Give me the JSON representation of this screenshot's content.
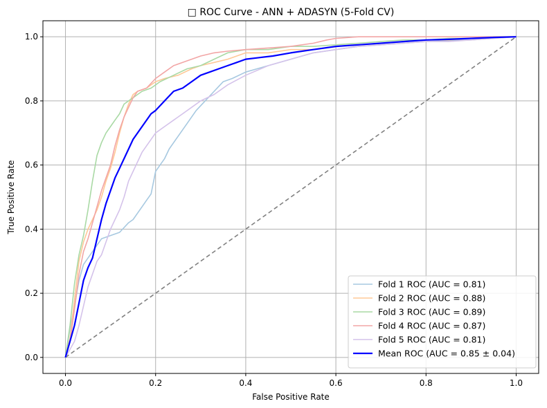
{
  "chart_data": {
    "type": "line",
    "title": "□ ROC Curve - ANN + ADASYN (5-Fold CV)",
    "xlabel": "False Positive Rate",
    "ylabel": "True Positive Rate",
    "xlim": [
      -0.05,
      1.05
    ],
    "ylim": [
      -0.05,
      1.05
    ],
    "xticks": [
      "0.0",
      "0.2",
      "0.4",
      "0.6",
      "0.8",
      "1.0"
    ],
    "yticks": [
      "0.0",
      "0.2",
      "0.4",
      "0.6",
      "0.8",
      "1.0"
    ],
    "grid": true,
    "legend_position": "lower right",
    "series": [
      {
        "name": "Fold 1 ROC (AUC = 0.81)",
        "color": "#a6c8e0",
        "x": [
          0,
          0.01,
          0.02,
          0.03,
          0.04,
          0.05,
          0.06,
          0.07,
          0.08,
          0.1,
          0.12,
          0.14,
          0.15,
          0.16,
          0.17,
          0.18,
          0.19,
          0.2,
          0.21,
          0.22,
          0.23,
          0.24,
          0.25,
          0.27,
          0.29,
          0.31,
          0.33,
          0.35,
          0.37,
          0.4,
          0.45,
          0.5,
          0.55,
          0.6,
          0.65,
          0.7,
          0.75,
          0.8,
          0.85,
          0.9,
          0.95,
          1.0
        ],
        "y": [
          0,
          0.09,
          0.16,
          0.24,
          0.29,
          0.31,
          0.33,
          0.35,
          0.37,
          0.38,
          0.39,
          0.42,
          0.43,
          0.45,
          0.47,
          0.49,
          0.51,
          0.58,
          0.6,
          0.62,
          0.65,
          0.67,
          0.69,
          0.73,
          0.77,
          0.8,
          0.83,
          0.86,
          0.87,
          0.89,
          0.91,
          0.93,
          0.95,
          0.96,
          0.97,
          0.975,
          0.98,
          0.985,
          0.988,
          0.99,
          0.995,
          1.0
        ]
      },
      {
        "name": "Fold 2 ROC (AUC = 0.88)",
        "color": "#ffc896",
        "x": [
          0,
          0.01,
          0.02,
          0.03,
          0.04,
          0.05,
          0.06,
          0.07,
          0.08,
          0.09,
          0.1,
          0.11,
          0.12,
          0.13,
          0.14,
          0.15,
          0.16,
          0.18,
          0.2,
          0.22,
          0.25,
          0.28,
          0.3,
          0.33,
          0.36,
          0.4,
          0.45,
          0.5,
          0.55,
          0.6,
          0.65,
          0.7,
          0.75,
          0.8,
          0.85,
          0.9,
          0.95,
          1.0
        ],
        "y": [
          0,
          0.06,
          0.18,
          0.3,
          0.36,
          0.4,
          0.43,
          0.46,
          0.5,
          0.55,
          0.59,
          0.64,
          0.7,
          0.75,
          0.79,
          0.82,
          0.83,
          0.84,
          0.86,
          0.87,
          0.88,
          0.9,
          0.91,
          0.92,
          0.93,
          0.95,
          0.95,
          0.96,
          0.96,
          0.97,
          0.975,
          0.98,
          0.985,
          0.99,
          0.99,
          0.995,
          1.0,
          1.0
        ]
      },
      {
        "name": "Fold 3 ROC (AUC = 0.89)",
        "color": "#a9d9a4",
        "x": [
          0,
          0.01,
          0.02,
          0.03,
          0.04,
          0.05,
          0.06,
          0.07,
          0.08,
          0.09,
          0.1,
          0.11,
          0.12,
          0.13,
          0.14,
          0.15,
          0.16,
          0.17,
          0.19,
          0.21,
          0.24,
          0.27,
          0.3,
          0.33,
          0.36,
          0.4,
          0.45,
          0.5,
          0.55,
          0.6,
          0.65,
          0.7,
          0.75,
          0.8,
          0.85,
          0.9,
          0.95,
          1.0
        ],
        "y": [
          0,
          0.1,
          0.23,
          0.32,
          0.38,
          0.46,
          0.55,
          0.63,
          0.67,
          0.7,
          0.72,
          0.74,
          0.76,
          0.79,
          0.8,
          0.81,
          0.82,
          0.83,
          0.84,
          0.86,
          0.88,
          0.9,
          0.91,
          0.93,
          0.95,
          0.96,
          0.96,
          0.97,
          0.97,
          0.975,
          0.98,
          0.985,
          0.99,
          0.99,
          0.995,
          0.995,
          1.0,
          1.0
        ]
      },
      {
        "name": "Fold 4 ROC (AUC = 0.87)",
        "color": "#f2a5a5",
        "x": [
          0,
          0.01,
          0.02,
          0.03,
          0.04,
          0.05,
          0.06,
          0.07,
          0.08,
          0.09,
          0.1,
          0.11,
          0.12,
          0.13,
          0.14,
          0.15,
          0.16,
          0.18,
          0.2,
          0.22,
          0.24,
          0.26,
          0.28,
          0.3,
          0.33,
          0.36,
          0.4,
          0.45,
          0.5,
          0.55,
          0.58,
          0.6,
          0.65,
          0.7,
          0.8,
          0.9,
          1.0
        ],
        "y": [
          0,
          0.05,
          0.15,
          0.26,
          0.33,
          0.37,
          0.42,
          0.47,
          0.52,
          0.56,
          0.6,
          0.66,
          0.71,
          0.75,
          0.78,
          0.81,
          0.83,
          0.84,
          0.87,
          0.89,
          0.91,
          0.92,
          0.93,
          0.94,
          0.95,
          0.955,
          0.96,
          0.965,
          0.97,
          0.98,
          0.99,
          0.995,
          1.0,
          1.0,
          1.0,
          1.0,
          1.0
        ]
      },
      {
        "name": "Fold 5 ROC (AUC = 0.81)",
        "color": "#d4c2ea",
        "x": [
          0,
          0.02,
          0.03,
          0.04,
          0.05,
          0.06,
          0.07,
          0.08,
          0.09,
          0.1,
          0.11,
          0.12,
          0.13,
          0.14,
          0.15,
          0.16,
          0.17,
          0.18,
          0.2,
          0.22,
          0.24,
          0.26,
          0.28,
          0.3,
          0.33,
          0.36,
          0.4,
          0.45,
          0.5,
          0.55,
          0.6,
          0.65,
          0.7,
          0.75,
          0.8,
          0.85,
          0.9,
          0.95,
          1.0
        ],
        "y": [
          0,
          0.05,
          0.1,
          0.16,
          0.22,
          0.26,
          0.3,
          0.32,
          0.36,
          0.4,
          0.43,
          0.46,
          0.5,
          0.55,
          0.58,
          0.61,
          0.64,
          0.66,
          0.7,
          0.72,
          0.74,
          0.76,
          0.78,
          0.8,
          0.82,
          0.85,
          0.88,
          0.91,
          0.93,
          0.95,
          0.96,
          0.97,
          0.975,
          0.98,
          0.985,
          0.985,
          0.99,
          0.995,
          1.0
        ]
      },
      {
        "name": "Mean ROC (AUC = 0.85 ± 0.04)",
        "color": "#0000ff",
        "x": [
          0,
          0.01,
          0.02,
          0.03,
          0.04,
          0.05,
          0.06,
          0.07,
          0.08,
          0.09,
          0.1,
          0.11,
          0.12,
          0.13,
          0.14,
          0.15,
          0.16,
          0.17,
          0.18,
          0.19,
          0.2,
          0.22,
          0.24,
          0.26,
          0.28,
          0.3,
          0.32,
          0.34,
          0.36,
          0.38,
          0.4,
          0.43,
          0.46,
          0.5,
          0.55,
          0.6,
          0.65,
          0.7,
          0.75,
          0.8,
          0.85,
          0.9,
          0.95,
          1.0
        ],
        "y": [
          0,
          0.05,
          0.1,
          0.17,
          0.24,
          0.28,
          0.31,
          0.37,
          0.43,
          0.48,
          0.52,
          0.56,
          0.59,
          0.62,
          0.65,
          0.68,
          0.7,
          0.72,
          0.74,
          0.76,
          0.77,
          0.8,
          0.83,
          0.84,
          0.86,
          0.88,
          0.89,
          0.9,
          0.91,
          0.92,
          0.93,
          0.935,
          0.94,
          0.95,
          0.96,
          0.97,
          0.975,
          0.98,
          0.985,
          0.99,
          0.992,
          0.995,
          0.998,
          1.0
        ]
      },
      {
        "name": "",
        "color": "#808080",
        "dashed": true,
        "x": [
          0,
          1
        ],
        "y": [
          0,
          1
        ]
      }
    ]
  }
}
